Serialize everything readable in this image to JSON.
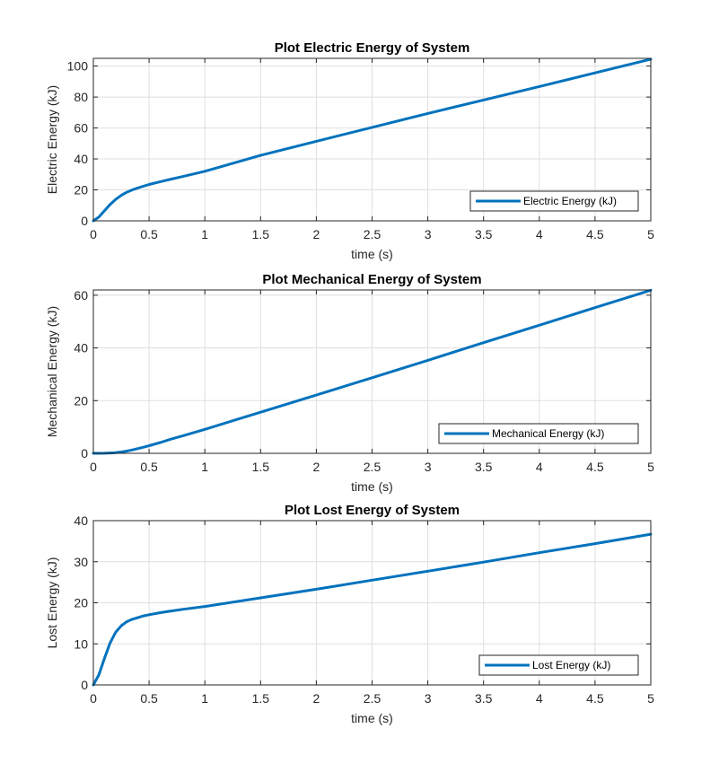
{
  "chart_data": [
    {
      "type": "line",
      "title": "Plot Electric Energy of System",
      "xlabel": "time (s)",
      "ylabel": "Electric Energy (kJ)",
      "xlim": [
        0,
        5
      ],
      "ylim": [
        0,
        105
      ],
      "xticks": [
        0,
        0.5,
        1,
        1.5,
        2,
        2.5,
        3,
        3.5,
        4,
        4.5,
        5
      ],
      "yticks": [
        0,
        20,
        40,
        60,
        80,
        100
      ],
      "grid": true,
      "legend_position": "bottom-right",
      "series": [
        {
          "name": "Electric Energy (kJ)",
          "color": "#0072BD",
          "x": [
            0,
            0.05,
            0.1,
            0.15,
            0.2,
            0.25,
            0.3,
            0.35,
            0.4,
            0.5,
            0.6,
            0.7,
            0.8,
            1,
            1.5,
            2,
            2.5,
            3,
            3.5,
            4,
            4.5,
            5
          ],
          "y": [
            0,
            2.5,
            6.5,
            10.5,
            13.8,
            16.5,
            18.5,
            20,
            21.3,
            23.5,
            25.3,
            27,
            28.6,
            32,
            42.3,
            51.4,
            60.4,
            69.4,
            78.1,
            86.8,
            95.6,
            104.5
          ]
        }
      ]
    },
    {
      "type": "line",
      "title": "Plot Mechanical Energy of System",
      "xlabel": "time (s)",
      "ylabel": "Mechanical Energy (kJ)",
      "xlim": [
        0,
        5
      ],
      "ylim": [
        0,
        62
      ],
      "xticks": [
        0,
        0.5,
        1,
        1.5,
        2,
        2.5,
        3,
        3.5,
        4,
        4.5,
        5
      ],
      "yticks": [
        0,
        20,
        40,
        60
      ],
      "grid": true,
      "legend_position": "bottom-right",
      "series": [
        {
          "name": "Mechanical Energy (kJ)",
          "color": "#0072BD",
          "x": [
            0,
            0.1,
            0.2,
            0.25,
            0.3,
            0.35,
            0.4,
            0.45,
            0.5,
            0.6,
            0.7,
            0.8,
            1,
            1.5,
            2,
            2.5,
            3,
            3.5,
            4,
            4.5,
            5
          ],
          "y": [
            0,
            0.05,
            0.25,
            0.5,
            0.85,
            1.3,
            1.8,
            2.3,
            2.9,
            4.1,
            5.4,
            6.6,
            9.1,
            15.6,
            22.1,
            28.7,
            35.3,
            42,
            48.6,
            55.3,
            61.9
          ]
        }
      ]
    },
    {
      "type": "line",
      "title": "Plot Lost Energy of System",
      "xlabel": "time (s)",
      "ylabel": "Lost Energy (kJ)",
      "xlim": [
        0,
        5
      ],
      "ylim": [
        0,
        40
      ],
      "xticks": [
        0,
        0.5,
        1,
        1.5,
        2,
        2.5,
        3,
        3.5,
        4,
        4.5,
        5
      ],
      "yticks": [
        0,
        10,
        20,
        30,
        40
      ],
      "grid": true,
      "legend_position": "bottom-right",
      "series": [
        {
          "name": "Lost Energy (kJ)",
          "color": "#0072BD",
          "x": [
            0,
            0.05,
            0.1,
            0.15,
            0.2,
            0.25,
            0.3,
            0.35,
            0.4,
            0.45,
            0.5,
            0.6,
            0.7,
            0.8,
            1,
            1.5,
            2,
            2.5,
            3,
            3.5,
            4,
            4.5,
            5
          ],
          "y": [
            0,
            2.5,
            6.5,
            10.2,
            12.8,
            14.4,
            15.4,
            16,
            16.4,
            16.8,
            17.1,
            17.6,
            18,
            18.4,
            19.1,
            21.2,
            23.3,
            25.5,
            27.7,
            29.9,
            32.2,
            34.4,
            36.7
          ]
        }
      ]
    }
  ]
}
